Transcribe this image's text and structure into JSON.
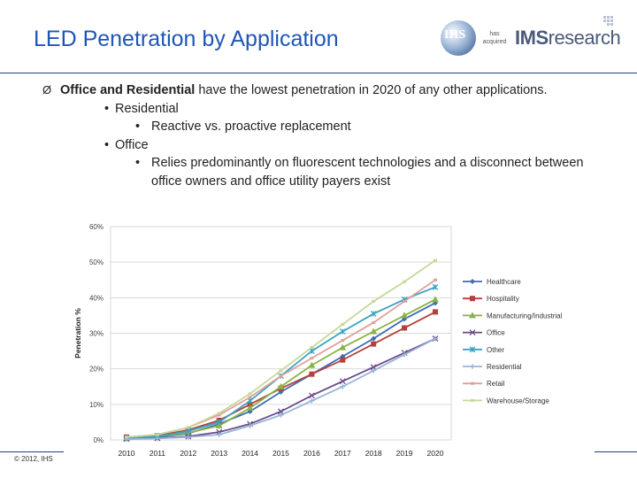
{
  "slide": {
    "title": "LED Penetration by Application",
    "logo_left": "IHS",
    "logo_middle": "has acquired",
    "logo_right_bold": "IMS",
    "logo_right_light": "research",
    "bullet": {
      "arrow": "Ø",
      "bold": "Office and Residential",
      "rest": " have the lowest penetration in 2020 of any other applications.",
      "sub": [
        {
          "label": "Residential",
          "items": [
            "Reactive vs. proactive replacement"
          ]
        },
        {
          "label": "Office",
          "items": [
            "Relies predominantly on fluorescent technologies and a disconnect between office owners and office utility payers exist"
          ]
        }
      ]
    },
    "footer": "© 2012, IHS"
  },
  "chart_data": {
    "type": "line",
    "title": "",
    "xlabel": "",
    "ylabel": "Penetration %",
    "x": [
      "2010",
      "2011",
      "2012",
      "2013",
      "2014",
      "2015",
      "2016",
      "2017",
      "2018",
      "2019",
      "2020"
    ],
    "ylim": [
      0,
      60
    ],
    "yticks": [
      "0%",
      "10%",
      "20%",
      "30%",
      "40%",
      "50%",
      "60%"
    ],
    "grid": true,
    "legend": "right",
    "series": [
      {
        "name": "Healthcare",
        "color": "#3e6db5",
        "marker": "diamond",
        "values": [
          0.5,
          0.8,
          1.8,
          4.5,
          8,
          13.5,
          18.5,
          23.5,
          28.5,
          34,
          38.5
        ]
      },
      {
        "name": "Hospitality",
        "color": "#b5403a",
        "marker": "square",
        "values": [
          0.8,
          1.2,
          2.8,
          5.5,
          10,
          14.5,
          18.5,
          22.5,
          27,
          31.5,
          36
        ]
      },
      {
        "name": "Manufacturing/Industrial",
        "color": "#8ab244",
        "marker": "triangle",
        "values": [
          0.5,
          1,
          2,
          4,
          9,
          15,
          21,
          26,
          30.5,
          35,
          39.5
        ]
      },
      {
        "name": "Office",
        "color": "#6a4a8c",
        "marker": "x",
        "values": [
          0.3,
          0.5,
          1,
          2.2,
          4.5,
          8,
          12.5,
          16.5,
          20.5,
          24.5,
          28.5
        ]
      },
      {
        "name": "Other",
        "color": "#3aa3c3",
        "marker": "star",
        "values": [
          0.5,
          1,
          2.5,
          5,
          11,
          18,
          25,
          30.5,
          35.5,
          39.5,
          43
        ]
      },
      {
        "name": "Residential",
        "color": "#98b4d6",
        "marker": "plus",
        "values": [
          0.2,
          0.4,
          0.8,
          1.5,
          4,
          7,
          11,
          15,
          19.5,
          24,
          28.5
        ]
      },
      {
        "name": "Retail",
        "color": "#e0a09a",
        "marker": "none",
        "values": [
          0.8,
          1.5,
          3.5,
          7,
          12,
          18,
          23,
          28,
          33,
          39,
          45
        ]
      },
      {
        "name": "Warehouse/Storage",
        "color": "#c4d89a",
        "marker": "none",
        "values": [
          0.8,
          1.5,
          3.5,
          7.5,
          13,
          19.5,
          26,
          32.5,
          39,
          44.5,
          50.5
        ]
      }
    ]
  }
}
